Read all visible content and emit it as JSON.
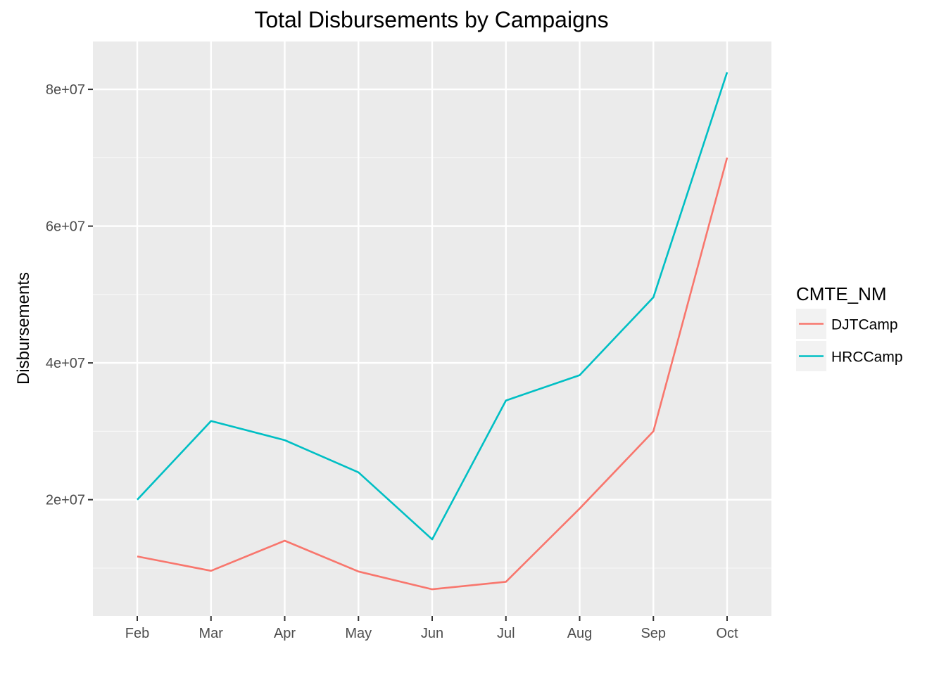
{
  "chart_data": {
    "type": "line",
    "title": "Total Disbursements by Campaigns",
    "xlabel": "",
    "ylabel": "Disbursements",
    "x": [
      "Feb",
      "Mar",
      "Apr",
      "May",
      "Jun",
      "Jul",
      "Aug",
      "Sep",
      "Oct"
    ],
    "ylim": [
      3000000,
      87000000
    ],
    "y_ticks": [
      20000000,
      40000000,
      60000000,
      80000000
    ],
    "y_tick_labels": [
      "2e+07",
      "4e+07",
      "6e+07",
      "8e+07"
    ],
    "grid": true,
    "legend": {
      "title": "CMTE_NM",
      "position": "right"
    },
    "series": [
      {
        "name": "DJTCamp",
        "color": "#F8766D",
        "values": [
          11700000,
          9600000,
          14000000,
          9500000,
          6900000,
          8000000,
          18700000,
          30000000,
          70000000
        ]
      },
      {
        "name": "HRCCamp",
        "color": "#00BFC4",
        "values": [
          20000000,
          31500000,
          28700000,
          24000000,
          14200000,
          34500000,
          38200000,
          49600000,
          82500000
        ]
      }
    ]
  }
}
